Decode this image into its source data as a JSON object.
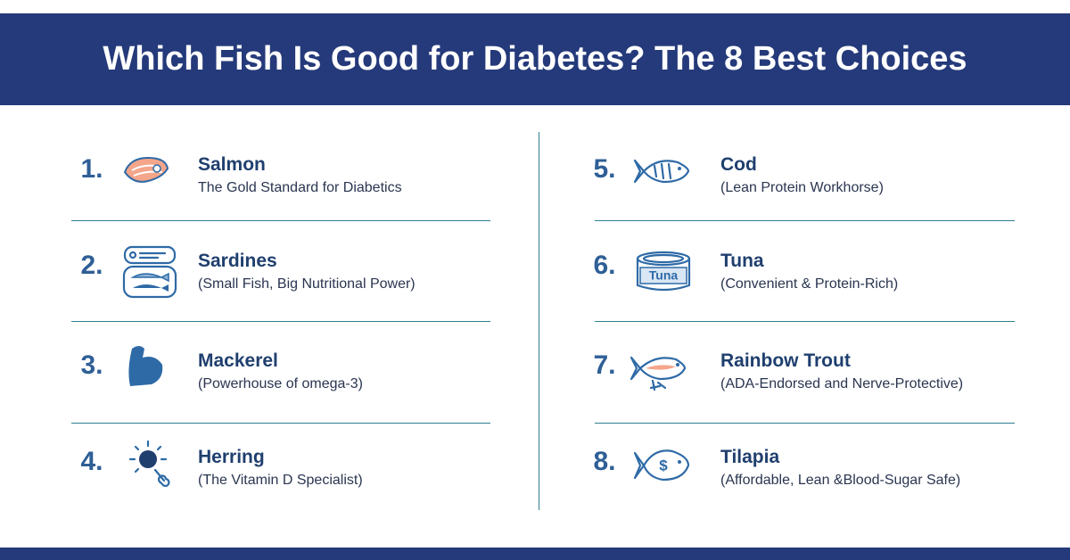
{
  "header": {
    "title": "Which Fish Is Good for Diabetes? The 8 Best Choices"
  },
  "items": [
    {
      "number": "1.",
      "name": "Salmon",
      "description": "The Gold Standard for Diabetics"
    },
    {
      "number": "2.",
      "name": "Sardines",
      "description": "(Small Fish, Big Nutritional Power)"
    },
    {
      "number": "3.",
      "name": "Mackerel",
      "description": "(Powerhouse of omega-3)"
    },
    {
      "number": "4.",
      "name": "Herring",
      "description": "(The Vitamin D Specialist)"
    },
    {
      "number": "5.",
      "name": "Cod",
      "description": "(Lean Protein Workhorse)"
    },
    {
      "number": "6.",
      "name": "Tuna",
      "description": "(Convenient & Protein-Rich)",
      "icon_text": "Tuna"
    },
    {
      "number": "7.",
      "name": "Rainbow Trout",
      "description": "(ADA-Endorsed and Nerve-Protective)"
    },
    {
      "number": "8.",
      "name": "Tilapia",
      "description": "(Affordable, Lean &Blood-Sugar Safe)"
    }
  ]
}
